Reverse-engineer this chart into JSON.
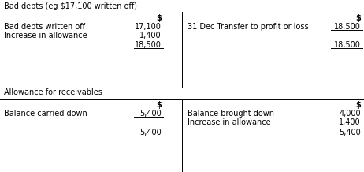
{
  "bg_color": "#ffffff",
  "text_color": "#000000",
  "section1_title": "Bad debts (eg $17,100 written off)",
  "section2_title": "Allowance for receivables",
  "table1": {
    "left_rows": [
      {
        "label": "Bad debts written off",
        "value": "17,100",
        "total": false
      },
      {
        "label": "Increase in allowance",
        "value": "1,400",
        "total": false
      },
      {
        "label": "",
        "value": "18,500",
        "total": true
      }
    ],
    "right_rows": [
      {
        "label": "31 Dec Transfer to profit or loss",
        "value": "18,500",
        "total": false
      },
      {
        "label": "",
        "value": "",
        "total": false
      },
      {
        "label": "",
        "value": "18,500",
        "total": true
      }
    ]
  },
  "table2": {
    "left_rows": [
      {
        "label": "Balance carried down",
        "value": "5,400",
        "total": false
      },
      {
        "label": "",
        "value": "",
        "total": false
      },
      {
        "label": "",
        "value": "5,400",
        "total": true
      }
    ],
    "right_rows": [
      {
        "label": "Balance brought down",
        "value": "4,000",
        "total": false
      },
      {
        "label": "Increase in allowance",
        "value": "1,400",
        "total": false
      },
      {
        "label": "",
        "value": "5,400",
        "total": true
      }
    ]
  }
}
